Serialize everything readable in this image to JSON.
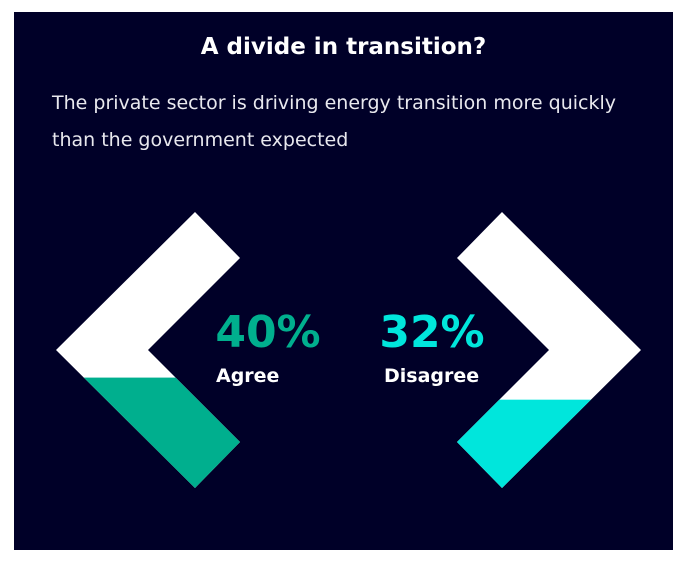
{
  "chart_data": {
    "type": "chevron",
    "title": "A divide in transition?",
    "subtitle": "The private sector is driving energy transition more quickly than the government expected",
    "categories": [
      "Agree",
      "Disagree"
    ],
    "values": [
      40,
      32
    ],
    "value_labels": [
      "40%",
      "32%"
    ],
    "colors": [
      "#00af8e",
      "#00e6dc"
    ],
    "ylim": [
      0,
      100
    ]
  }
}
